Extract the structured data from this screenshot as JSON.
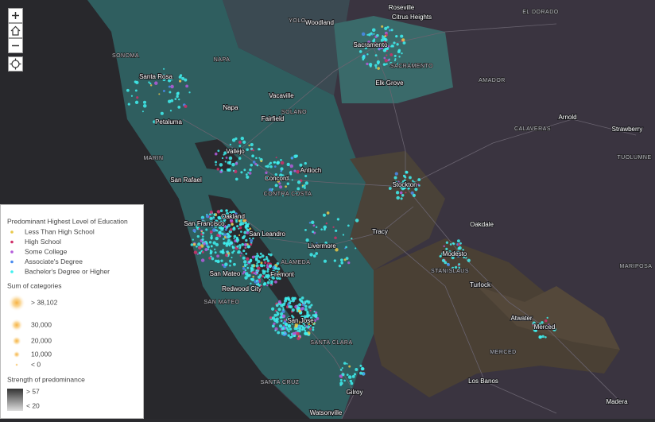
{
  "labels": {
    "cities": [
      "Roseville",
      "Citrus Heights",
      "Woodland",
      "Sacramento",
      "Elk Grove",
      "Santa Rosa",
      "Vacaville",
      "Napa",
      "Fairfield",
      "Petaluma",
      "Vallejo",
      "San Rafael",
      "Concord",
      "Antioch",
      "Stockton",
      "Oakland",
      "San Francisco",
      "San Leandro",
      "Tracy",
      "Livermore",
      "Modesto",
      "Oakdale",
      "Fremont",
      "Redwood City",
      "San Mateo",
      "San Jose",
      "Turlock",
      "Atwater",
      "Merced",
      "Gilroy",
      "Los Banos",
      "Watsonville",
      "Madera",
      "Arnold",
      "Strawberry"
    ],
    "regions": [
      "YOLO",
      "EL DORADO",
      "SACRAMENTO",
      "AMADOR",
      "SONOMA",
      "NAPA",
      "SOLANO",
      "CALAVERAS",
      "TUOLUMNE",
      "MARIN",
      "CONTRA COSTA",
      "ALAMEDA",
      "STANISLAUS",
      "SAN MATEO",
      "SANTA CLARA",
      "MERCED",
      "SANTA CRUZ",
      "MARIPOSA"
    ]
  },
  "legend": {
    "title": "Predominant Highest Level of Education",
    "categories": [
      {
        "label": "Less Than High School",
        "color": "#e8c84a"
      },
      {
        "label": "High School",
        "color": "#d0306a"
      },
      {
        "label": "Some College",
        "color": "#b45cdc"
      },
      {
        "label": "Associate's Degree",
        "color": "#4a8cf0"
      },
      {
        "label": "Bachelor's Degree or Higher",
        "color": "#3ff0f0"
      }
    ],
    "size_title": "Sum of categories",
    "size_labels": [
      "> 38,102",
      "30,000",
      "20,000",
      "10,000",
      "< 0"
    ],
    "strength_title": "Strength of predominance",
    "strength_labels": [
      "> 57",
      "< 20"
    ]
  }
}
